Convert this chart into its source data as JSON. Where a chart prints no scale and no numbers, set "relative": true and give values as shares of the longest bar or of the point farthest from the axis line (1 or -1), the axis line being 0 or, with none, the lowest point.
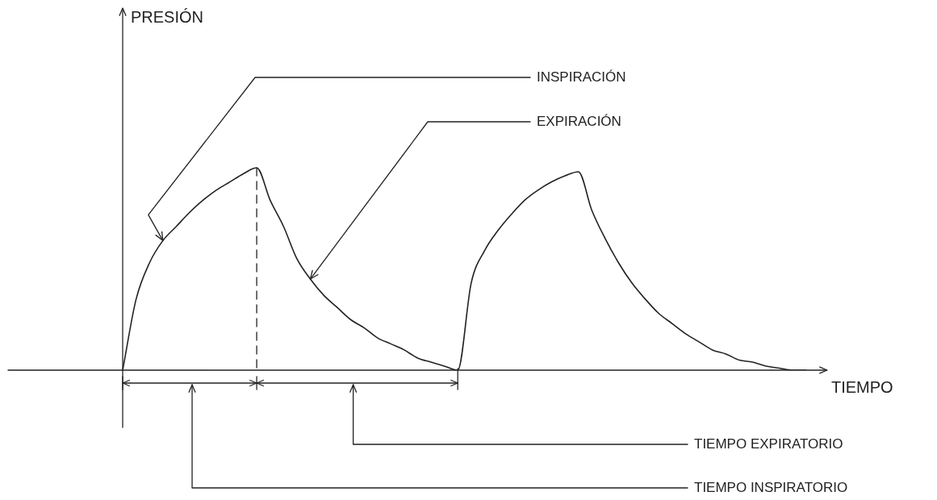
{
  "chart_data": {
    "type": "line",
    "relative": true,
    "xlabel": "TIEMPO",
    "marker": "none",
    "categories": [
      null,
      null,
      null,
      null,
      null,
      null,
      null,
      null,
      null,
      null,
      null,
      null,
      null,
      null,
      null,
      null,
      null,
      null,
      null,
      null,
      null,
      null,
      null,
      null,
      null,
      null,
      null,
      null,
      null,
      null,
      null,
      null,
      null,
      null,
      null,
      null,
      null,
      null,
      null,
      null,
      null,
      null,
      null,
      null,
      null,
      null,
      null,
      null,
      null,
      null,
      null,
      null
    ],
    "series": [
      {
        "color": "#222222",
        "values": [
          0,
          0.35,
          0.53,
          0.64,
          0.71,
          0.78,
          0.84,
          0.89,
          0.93,
          0.97,
          1,
          0.84,
          0.71,
          0.55,
          0.45,
          0.37,
          0.31,
          0.25,
          0.21,
          0.16,
          0.13,
          0.1,
          0.06,
          0.04,
          0.02,
          0,
          0.43,
          0.59,
          0.69,
          0.77,
          0.84,
          0.89,
          0.93,
          0.96,
          0.98,
          0.79,
          0.65,
          0.53,
          0.43,
          0.35,
          0.28,
          0.23,
          0.18,
          0.14,
          0.1,
          0.08,
          0.05,
          0.04,
          0.02,
          0.01,
          0,
          0
        ]
      }
    ],
    "annotations": [
      "PRESIÓN",
      "INSPIRACIÓN",
      "EXPIRACIÓN",
      "TIEMPO EXPIRATORIO",
      "TIEMPO INSPIRATORIO"
    ]
  }
}
